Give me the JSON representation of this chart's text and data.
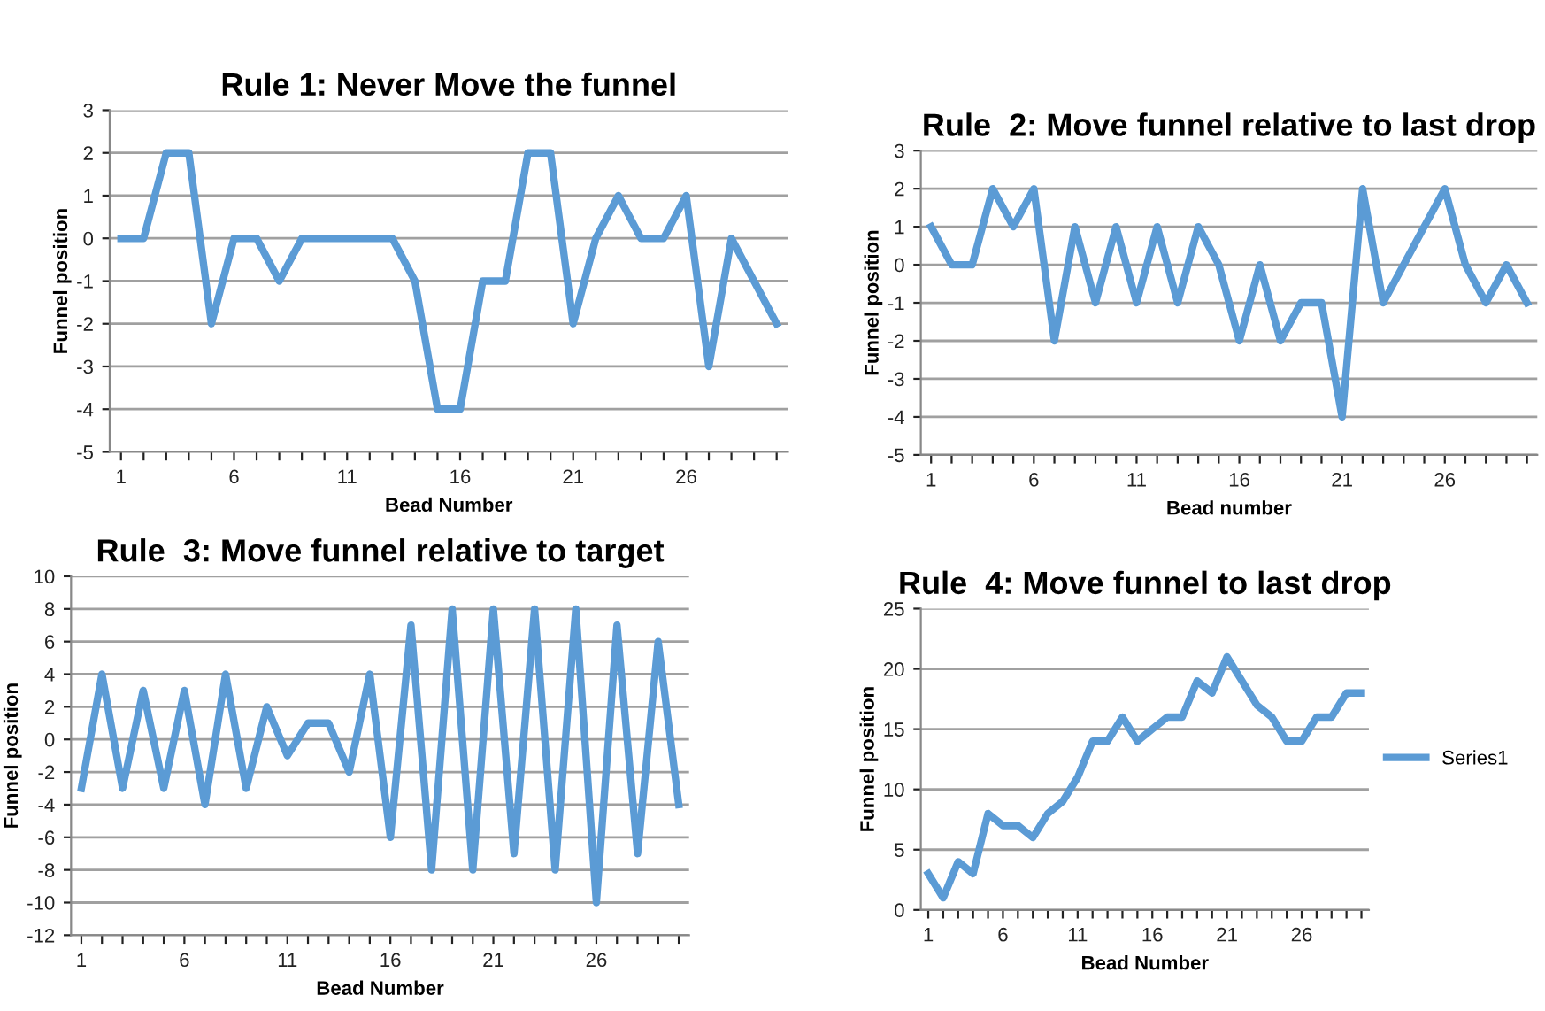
{
  "chart_data": [
    {
      "type": "line",
      "title": "Rule 1: Never Move the funnel",
      "xlabel": "Bead Number",
      "ylabel": "Funnel position",
      "categories": [
        "1",
        null,
        null,
        null,
        null,
        "6",
        null,
        null,
        null,
        null,
        "11",
        null,
        null,
        null,
        null,
        "16",
        null,
        null,
        null,
        null,
        "21",
        null,
        null,
        null,
        null,
        "26",
        null,
        null,
        null,
        null
      ],
      "ylim": [
        -5,
        3
      ],
      "yticks": [
        -5,
        -4,
        -3,
        -2,
        -1,
        0,
        1,
        2,
        3
      ],
      "grid": "y",
      "series": [
        {
          "color": "#5b9bd5",
          "values": [
            0,
            0,
            2,
            2,
            -2,
            0,
            0,
            -1,
            0,
            0,
            0,
            0,
            0,
            -1,
            -4,
            -4,
            -1,
            -1,
            2,
            2,
            -2,
            0,
            1,
            0,
            0,
            1,
            -3,
            0,
            -1,
            -2
          ]
        }
      ]
    },
    {
      "type": "line",
      "title": "Rule  2: Move funnel relative to last drop",
      "xlabel": "Bead number",
      "ylabel": "Funnel position",
      "categories": [
        "1",
        null,
        null,
        null,
        null,
        "6",
        null,
        null,
        null,
        null,
        "11",
        null,
        null,
        null,
        null,
        "16",
        null,
        null,
        null,
        null,
        "21",
        null,
        null,
        null,
        null,
        "26",
        null,
        null,
        null,
        null
      ],
      "ylim": [
        -5,
        3
      ],
      "yticks": [
        -5,
        -4,
        -3,
        -2,
        -1,
        0,
        1,
        2,
        3
      ],
      "grid": "y",
      "series": [
        {
          "color": "#5b9bd5",
          "values": [
            1,
            0,
            0,
            2,
            1,
            2,
            -2,
            1,
            -1,
            1,
            -1,
            1,
            -1,
            1,
            0,
            -2,
            0,
            -2,
            -1,
            -1,
            -4,
            2,
            -1,
            0,
            1,
            2,
            0,
            -1,
            0,
            -1
          ]
        }
      ]
    },
    {
      "type": "line",
      "title": "Rule  3: Move funnel relative to target",
      "xlabel": "Bead Number",
      "ylabel": "Funnel position",
      "categories": [
        "1",
        null,
        null,
        null,
        null,
        "6",
        null,
        null,
        null,
        null,
        "11",
        null,
        null,
        null,
        null,
        "16",
        null,
        null,
        null,
        null,
        "21",
        null,
        null,
        null,
        null,
        "26",
        null,
        null,
        null,
        null
      ],
      "ylim": [
        -12,
        10
      ],
      "yticks": [
        -12,
        -10,
        -8,
        -6,
        -4,
        -2,
        0,
        2,
        4,
        6,
        8,
        10
      ],
      "grid": "y",
      "series": [
        {
          "color": "#5b9bd5",
          "values": [
            -3,
            4,
            -3,
            3,
            -3,
            3,
            -4,
            4,
            -3,
            2,
            -1,
            1,
            1,
            -2,
            4,
            -6,
            7,
            -8,
            8,
            -8,
            8,
            -7,
            8,
            -8,
            8,
            -10,
            7,
            -7,
            6,
            -4
          ]
        }
      ]
    },
    {
      "type": "line",
      "title": "Rule  4: Move funnel to last drop",
      "xlabel": "Bead Number",
      "ylabel": "Funnel position",
      "categories": [
        "1",
        null,
        null,
        null,
        null,
        "6",
        null,
        null,
        null,
        null,
        "11",
        null,
        null,
        null,
        null,
        "16",
        null,
        null,
        null,
        null,
        "21",
        null,
        null,
        null,
        null,
        "26",
        null,
        null,
        null,
        null
      ],
      "ylim": [
        0,
        25
      ],
      "yticks": [
        0,
        5,
        10,
        15,
        20,
        25
      ],
      "grid": "y",
      "legend": "right",
      "series": [
        {
          "name": "Series1",
          "color": "#5b9bd5",
          "values": [
            3,
            1,
            4,
            3,
            8,
            7,
            7,
            6,
            8,
            9,
            11,
            14,
            14,
            16,
            14,
            15,
            16,
            16,
            19,
            18,
            21,
            19,
            17,
            16,
            14,
            14,
            16,
            16,
            18,
            18
          ]
        }
      ]
    }
  ]
}
